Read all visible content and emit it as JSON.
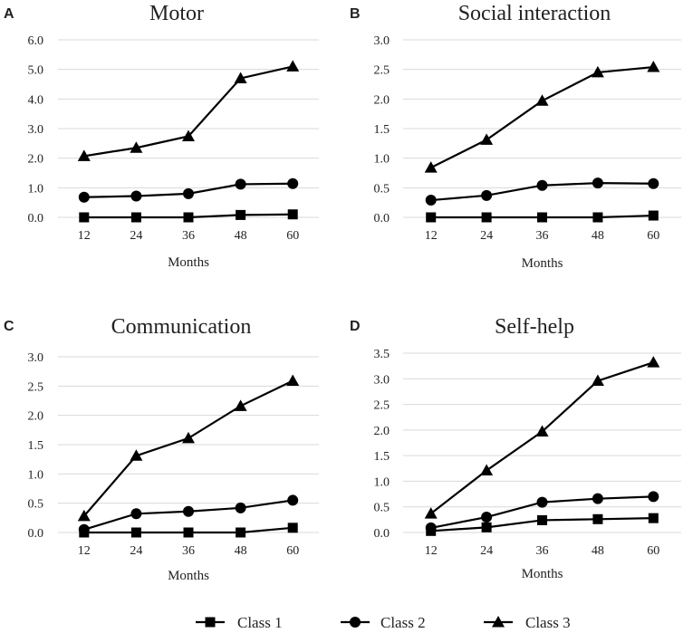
{
  "legend": [
    {
      "name": "Class 1",
      "marker": "square"
    },
    {
      "name": "Class 2",
      "marker": "circle"
    },
    {
      "name": "Class 3",
      "marker": "triangle"
    }
  ],
  "colors": {
    "series": "#000000",
    "grid": "#d9d9d9",
    "text": "#222222"
  },
  "chart_data": [
    {
      "panel": "A",
      "type": "line",
      "title": "Motor",
      "xlabel": "Months",
      "ylabel": "",
      "x": [
        12,
        24,
        36,
        48,
        60
      ],
      "ylim": [
        0,
        6
      ],
      "yticks": [
        "0.0",
        "1.0",
        "2.0",
        "3.0",
        "4.0",
        "5.0",
        "6.0"
      ],
      "series": [
        {
          "name": "Class 1",
          "values": [
            0.0,
            0.0,
            0.0,
            0.08,
            0.1
          ]
        },
        {
          "name": "Class 2",
          "values": [
            0.68,
            0.72,
            0.8,
            1.12,
            1.14
          ]
        },
        {
          "name": "Class 3",
          "values": [
            2.07,
            2.35,
            2.74,
            4.7,
            5.1
          ]
        }
      ]
    },
    {
      "panel": "B",
      "type": "line",
      "title": "Social interaction",
      "xlabel": "Months",
      "ylabel": "",
      "x": [
        12,
        24,
        36,
        48,
        60
      ],
      "ylim": [
        0,
        3
      ],
      "yticks": [
        "0.0",
        "0.5",
        "1.0",
        "1.5",
        "2.0",
        "2.5",
        "3.0"
      ],
      "series": [
        {
          "name": "Class 1",
          "values": [
            0.0,
            0.0,
            0.0,
            0.0,
            0.03
          ]
        },
        {
          "name": "Class 2",
          "values": [
            0.29,
            0.37,
            0.54,
            0.58,
            0.57
          ]
        },
        {
          "name": "Class 3",
          "values": [
            0.84,
            1.31,
            1.97,
            2.45,
            2.54
          ]
        }
      ]
    },
    {
      "panel": "C",
      "type": "line",
      "title": "Communication",
      "xlabel": "Months",
      "ylabel": "",
      "x": [
        12,
        24,
        36,
        48,
        60
      ],
      "ylim": [
        0,
        3
      ],
      "yticks": [
        "0.0",
        "0.5",
        "1.0",
        "1.5",
        "2.0",
        "2.5",
        "3.0"
      ],
      "series": [
        {
          "name": "Class 1",
          "values": [
            0.0,
            0.0,
            0.0,
            0.0,
            0.08
          ]
        },
        {
          "name": "Class 2",
          "values": [
            0.05,
            0.32,
            0.36,
            0.42,
            0.55
          ]
        },
        {
          "name": "Class 3",
          "values": [
            0.28,
            1.31,
            1.61,
            2.16,
            2.59
          ]
        }
      ]
    },
    {
      "panel": "D",
      "type": "line",
      "title": "Self-help",
      "xlabel": "Months",
      "ylabel": "",
      "x": [
        12,
        24,
        36,
        48,
        60
      ],
      "ylim": [
        0,
        3.5
      ],
      "yticks": [
        "0.0",
        "0.5",
        "1.0",
        "1.5",
        "2.0",
        "2.5",
        "3.0",
        "3.5"
      ],
      "series": [
        {
          "name": "Class 1",
          "values": [
            0.03,
            0.1,
            0.24,
            0.26,
            0.28
          ]
        },
        {
          "name": "Class 2",
          "values": [
            0.09,
            0.3,
            0.59,
            0.66,
            0.7
          ]
        },
        {
          "name": "Class 3",
          "values": [
            0.37,
            1.21,
            1.97,
            2.96,
            3.32
          ]
        }
      ]
    }
  ]
}
